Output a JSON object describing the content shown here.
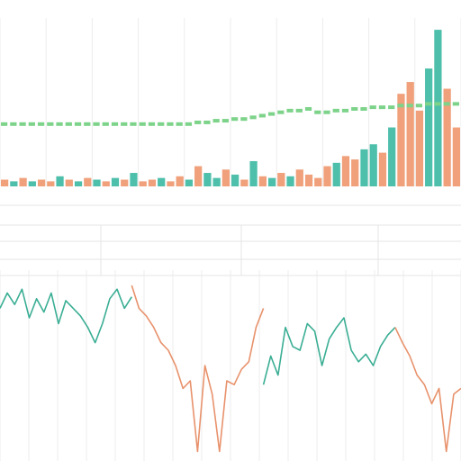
{
  "chart_data": [
    {
      "type": "bar",
      "values": [
        4,
        3,
        5,
        3,
        4,
        3,
        6,
        4,
        3,
        5,
        4,
        3,
        5,
        4,
        8,
        3,
        4,
        5,
        3,
        6,
        4,
        12,
        8,
        5,
        10,
        7,
        4,
        15,
        6,
        5,
        8,
        6,
        10,
        7,
        5,
        12,
        14,
        18,
        16,
        22,
        25,
        20,
        35,
        55,
        62,
        45,
        70,
        93,
        58,
        35
      ],
      "colors": [
        "#f0a07a",
        "#4dbfaa",
        "#f0a07a",
        "#4dbfaa",
        "#f0a07a",
        "#f0a07a",
        "#4dbfaa",
        "#f0a07a",
        "#4dbfaa",
        "#f0a07a",
        "#4dbfaa",
        "#f0a07a",
        "#4dbfaa",
        "#f0a07a",
        "#4dbfaa",
        "#f0a07a",
        "#f0a07a",
        "#4dbfaa",
        "#f0a07a",
        "#f0a07a",
        "#4dbfaa",
        "#f0a07a",
        "#4dbfaa",
        "#4dbfaa",
        "#f0a07a",
        "#4dbfaa",
        "#f0a07a",
        "#4dbfaa",
        "#f0a07a",
        "#4dbfaa",
        "#f0a07a",
        "#4dbfaa",
        "#f0a07a",
        "#f0a07a",
        "#f0a07a",
        "#f0a07a",
        "#4dbfaa",
        "#f0a07a",
        "#f0a07a",
        "#4dbfaa",
        "#4dbfaa",
        "#f0a07a",
        "#4dbfaa",
        "#f0a07a",
        "#f0a07a",
        "#f0a07a",
        "#4dbfaa",
        "#4dbfaa",
        "#f0a07a",
        "#f0a07a"
      ],
      "line": {
        "color": "#7dd38a",
        "values": [
          37,
          37,
          37,
          37,
          37,
          37,
          37,
          37,
          37,
          37,
          37,
          37,
          37,
          37,
          37,
          37,
          37,
          37,
          37,
          37,
          37,
          38,
          38,
          39,
          39,
          40,
          40,
          41,
          42,
          43,
          44,
          45,
          45,
          46,
          44,
          44,
          45,
          45,
          46,
          46,
          47,
          47,
          47,
          48,
          48,
          48,
          49,
          49,
          49,
          49
        ]
      },
      "ylim": [
        0,
        100
      ],
      "grid": true
    },
    {
      "type": "line",
      "series": [
        {
          "color": "#3aae94",
          "values": [
            80,
            88,
            82,
            90,
            75,
            85,
            78,
            88,
            72,
            84,
            80,
            76,
            70,
            62,
            72,
            85,
            90,
            80,
            86,
            null,
            null,
            null,
            null,
            null,
            null,
            null,
            null,
            null,
            null,
            null,
            null,
            null,
            null,
            null,
            null,
            null,
            40,
            55,
            45,
            70,
            60,
            58,
            72,
            68,
            50,
            64,
            70,
            75,
            58,
            52,
            56,
            50,
            60,
            66,
            70,
            null,
            null,
            null,
            null,
            null,
            null,
            null,
            null,
            null
          ]
        },
        {
          "color": "#e8926c",
          "values": [
            null,
            null,
            null,
            null,
            null,
            null,
            null,
            null,
            null,
            null,
            null,
            null,
            null,
            null,
            null,
            null,
            null,
            null,
            92,
            80,
            76,
            70,
            62,
            58,
            50,
            38,
            42,
            5,
            50,
            35,
            5,
            42,
            40,
            48,
            52,
            70,
            80,
            null,
            null,
            null,
            null,
            null,
            null,
            null,
            null,
            null,
            null,
            null,
            null,
            null,
            null,
            null,
            null,
            null,
            70,
            62,
            55,
            45,
            40,
            30,
            38,
            5,
            35,
            38
          ]
        }
      ],
      "ylim": [
        0,
        100
      ],
      "grid": true
    }
  ]
}
